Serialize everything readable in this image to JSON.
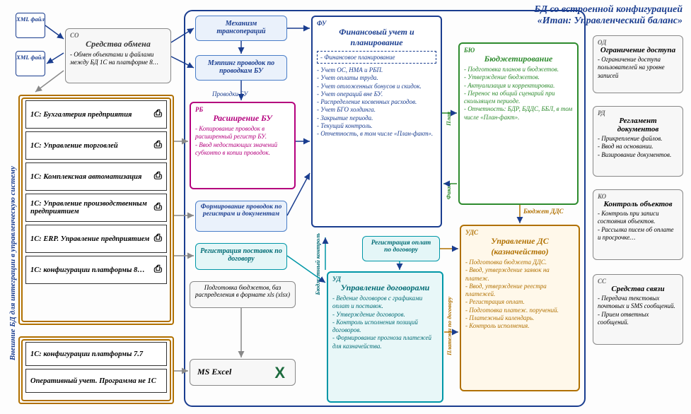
{
  "header": {
    "line1": "БД со встроенной конфигурацией",
    "line2": "«Итан: Управленческий баланс»"
  },
  "xml1": "XML файл",
  "xml2": "XML файл",
  "co": {
    "tag": "СО",
    "title": "Средства обмена",
    "items": [
      "Обмен объектами и файлами между БД 1С на платформе 8…"
    ]
  },
  "mech": "Механизм трансопераций",
  "mapping": "Мэппинг проводок по проводкам БУ",
  "provodki_label": "Проводки БУ",
  "rb": {
    "tag": "РБ",
    "title": "Расширение БУ",
    "items": [
      "Копирование проводок в расширенный регистр БУ.",
      "Ввод недостающих значений субконто в копии проводок."
    ]
  },
  "form_regs": "Формирование проводок по регистрам и документам",
  "reg_post": "Регистрация поставок по договору",
  "budget_prep": "Подготовка бюджетов, баз распределения в формате xls (xlsx)",
  "excel": "MS Excel",
  "fu": {
    "tag": "ФУ",
    "title": "Финансовый учет и планирование",
    "section1": [
      "Финансовое планирование"
    ],
    "items": [
      "Учет ОС, НМА и РБП.",
      "Учет оплаты труда.",
      "Учет отложенных бонусов и скидок.",
      "Учет операций вне БУ.",
      "Распределение косвенных расходов.",
      "Учет БГО холдинга.",
      "Закрытие периода.",
      "Текущий контроль.",
      "Отчетность, в том числе «План-факт»."
    ]
  },
  "plan_label": "План",
  "fact_label": "Факт",
  "byu": {
    "tag": "БЮ",
    "title": "Бюджетирование",
    "items": [
      "Подготовка планов и бюджетов.",
      "Утверждение бюджетов.",
      "Актуализация и корректировка.",
      "Перенос на общий сценарий при скользящем периоде.",
      "Отчетность: БДР, БДДС, ББЛ, в том числе «План-факт»."
    ]
  },
  "budget_dds": "Бюджет ДДС",
  "reg_oplat": "Регистрация оплат по договору",
  "budget_control": "Бюджетный контроль",
  "ud": {
    "tag": "УД",
    "title": "Управление договорами",
    "items": [
      "Ведение договоров с графиками оплат и поставок.",
      "Утверждение договоров.",
      "Контроль исполнения позиций договоров.",
      "Формирование прогноза платежей для казначейства."
    ]
  },
  "platezhi_label": "Платежи по договору",
  "uds": {
    "tag": "УДС",
    "title": "Управление ДС (казначейство)",
    "items": [
      "Подготовка бюджета ДДС.",
      "Ввод, утверждение заявок на платеж.",
      "Ввод, утверждение реестра платежей.",
      "Регистрация оплат.",
      "Подготовка платеж. поручений.",
      "Платежный календарь.",
      "Контроль исполнения."
    ]
  },
  "ext_label": "Внешние БД для интеграции в управленческую систему",
  "ext_items": [
    "1С: Бухгалтерия предприятия",
    "1С: Управление торговлей",
    "1С: Комплексная автоматизация",
    "1С: Управление производственным предприятием",
    "1С: ERP. Управление предприятием",
    "1С: конфигурации платформы 8…"
  ],
  "ext_items2": [
    "1С: конфигурации платформы 7.7",
    "Оперативный учет. Программа не 1С"
  ],
  "od": {
    "tag": "ОД",
    "title": "Ограничение доступа",
    "items": [
      "Ограничение доступа пользователей на уровне записей"
    ]
  },
  "rd": {
    "tag": "РД",
    "title": "Регламент документов",
    "items": [
      "Прикрепление файлов.",
      "Ввод на основании.",
      "Визирование документов."
    ]
  },
  "ko": {
    "tag": "КО",
    "title": "Контроль объектов",
    "items": [
      "Контроль при записи состояния объектов.",
      "Рассылка писем об оплате и просрочке…"
    ]
  },
  "cc": {
    "tag": "СС",
    "title": "Средства связи",
    "items": [
      "Передача текстовых почтовых и SMS сообщений.",
      "Прием ответных сообщений."
    ]
  },
  "colors": {
    "main_blue": "#1a3d8f",
    "orange": "#b07000",
    "magenta": "#b4007d",
    "green": "#2e8b2e",
    "teal": "#0097a7",
    "dark_teal": "#006b74",
    "soft_blue": "#4a7ec8",
    "gray": "#888"
  }
}
